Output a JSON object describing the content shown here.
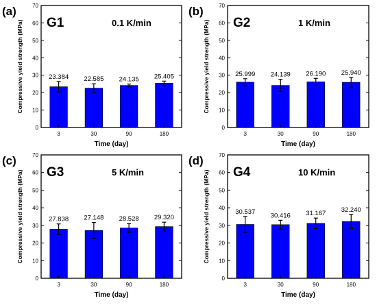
{
  "figure": {
    "panels": [
      {
        "panel_label": "(a)",
        "group_label": "G1",
        "rate_label": "0.1 K/min",
        "ylabel": "Compressive yield strength (MPa)",
        "xlabel": "Time (day)"
      },
      {
        "panel_label": "(b)",
        "group_label": "G2",
        "rate_label": "1 K/min",
        "ylabel": "Compressive yield strength (MPa)",
        "xlabel": "Time (day)"
      },
      {
        "panel_label": "(c)",
        "group_label": "G3",
        "rate_label": "5 K/min",
        "ylabel": "Compressive yield strength (MPa)",
        "xlabel": "Time (day)"
      },
      {
        "panel_label": "(d)",
        "group_label": "G4",
        "rate_label": "10 K/min",
        "ylabel": "Compressive yield strength (MPa)",
        "xlabel": "Time (day)"
      }
    ]
  },
  "chart_data": [
    {
      "type": "bar",
      "title": "",
      "xlabel": "Time (day)",
      "ylabel": "Compressive yield strength (MPa)",
      "categories": [
        "3",
        "30",
        "90",
        "180"
      ],
      "values": [
        23.384,
        22.585,
        24.135,
        25.405
      ],
      "value_labels": [
        "23.384",
        "22.585",
        "24.135",
        "25.405"
      ],
      "errors": [
        3.0,
        2.5,
        0.8,
        1.2
      ],
      "ylim": [
        0,
        70
      ],
      "yticks": [
        0,
        10,
        20,
        30,
        40,
        50,
        60,
        70
      ],
      "bar_color": "#0000ff",
      "grid": false
    },
    {
      "type": "bar",
      "title": "",
      "xlabel": "Time (day)",
      "ylabel": "Compressive yield strength (MPa)",
      "categories": [
        "3",
        "30",
        "90",
        "180"
      ],
      "values": [
        25.999,
        24.139,
        26.19,
        25.94
      ],
      "value_labels": [
        "25.999",
        "24.139",
        "26.190",
        "25.940"
      ],
      "errors": [
        2.0,
        3.5,
        2.0,
        2.8
      ],
      "ylim": [
        0,
        70
      ],
      "yticks": [
        0,
        10,
        20,
        30,
        40,
        50,
        60,
        70
      ],
      "bar_color": "#0000ff",
      "grid": false
    },
    {
      "type": "bar",
      "title": "",
      "xlabel": "Time (day)",
      "ylabel": "Compressive yield strength (MPa)",
      "categories": [
        "3",
        "30",
        "90",
        "180"
      ],
      "values": [
        27.838,
        27.148,
        28.528,
        29.32
      ],
      "value_labels": [
        "27.838",
        "27.148",
        "28.528",
        "29.320"
      ],
      "errors": [
        3.0,
        4.5,
        2.5,
        2.5
      ],
      "ylim": [
        0,
        70
      ],
      "yticks": [
        0,
        10,
        20,
        30,
        40,
        50,
        60,
        70
      ],
      "bar_color": "#0000ff",
      "grid": false
    },
    {
      "type": "bar",
      "title": "",
      "xlabel": "Time (day)",
      "ylabel": "Compressive yield strength (MPa)",
      "categories": [
        "3",
        "30",
        "90",
        "180"
      ],
      "values": [
        30.537,
        30.416,
        31.167,
        32.24
      ],
      "value_labels": [
        "30.537",
        "30.416",
        "31.167",
        "32.240"
      ],
      "errors": [
        4.5,
        2.5,
        3.0,
        4.0
      ],
      "ylim": [
        0,
        70
      ],
      "yticks": [
        0,
        10,
        20,
        30,
        40,
        50,
        60,
        70
      ],
      "bar_color": "#0000ff",
      "grid": false
    }
  ]
}
